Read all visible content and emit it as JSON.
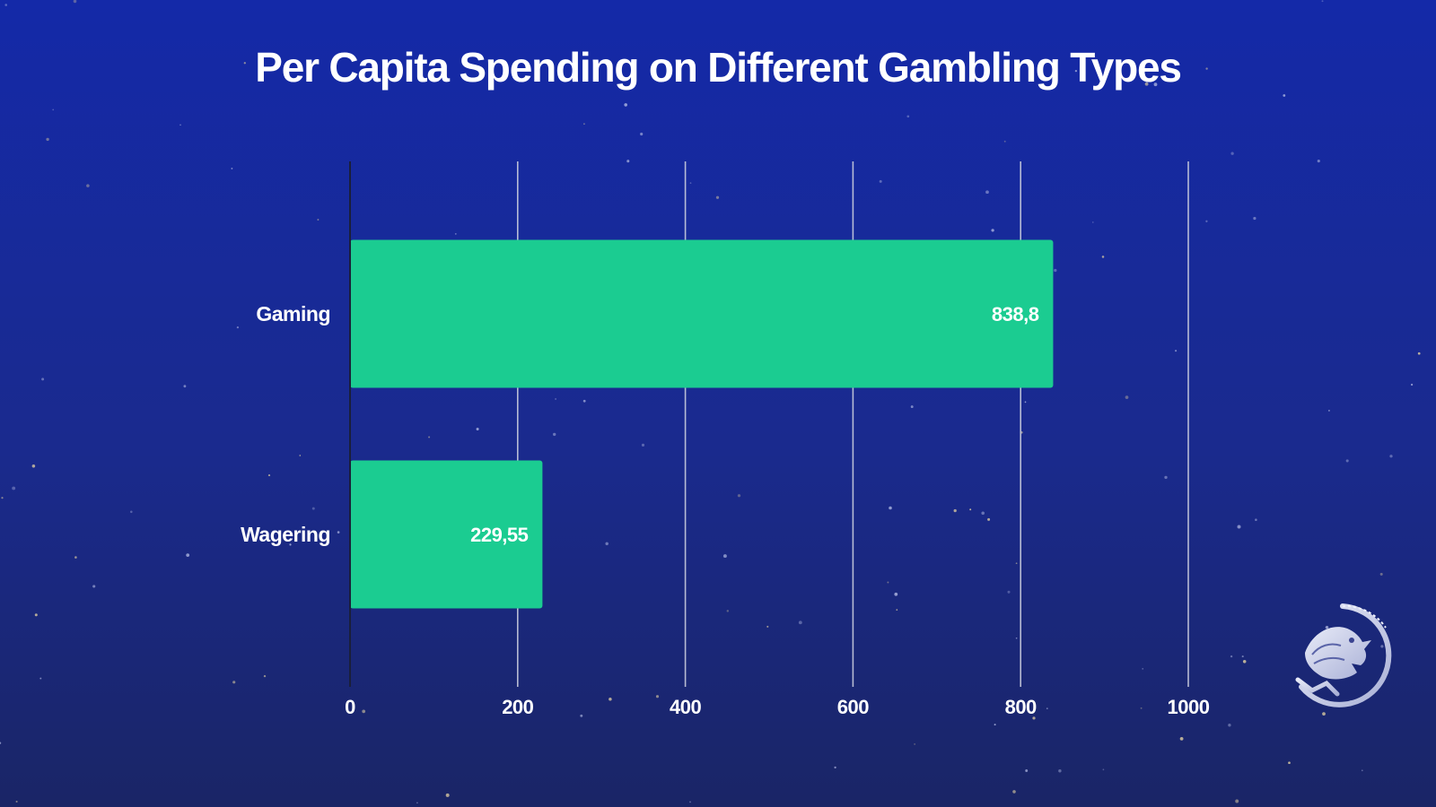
{
  "colors": {
    "background_top": "#1429a8",
    "background_bottom": "#1a2566",
    "bar": "#1bcc91",
    "text": "#ffffff",
    "grid": "#c9ccdd",
    "axis": "#1a1f3a"
  },
  "logo": {
    "icon": "dragon-emblem-icon"
  },
  "chart_data": {
    "type": "bar",
    "orientation": "horizontal",
    "title": "Per Capita Spending on Different Gambling Types",
    "xlabel": "",
    "ylabel": "",
    "categories": [
      "Gaming",
      "Wagering"
    ],
    "values": [
      838.8,
      229.55
    ],
    "data_labels": [
      "838,8",
      "229,55"
    ],
    "xlim": [
      0,
      1000
    ],
    "x_ticks": [
      0,
      200,
      400,
      600,
      800,
      1000
    ],
    "x_tick_labels": [
      "0",
      "200",
      "400",
      "600",
      "800",
      "1000"
    ],
    "grid": true,
    "legend": "none"
  }
}
